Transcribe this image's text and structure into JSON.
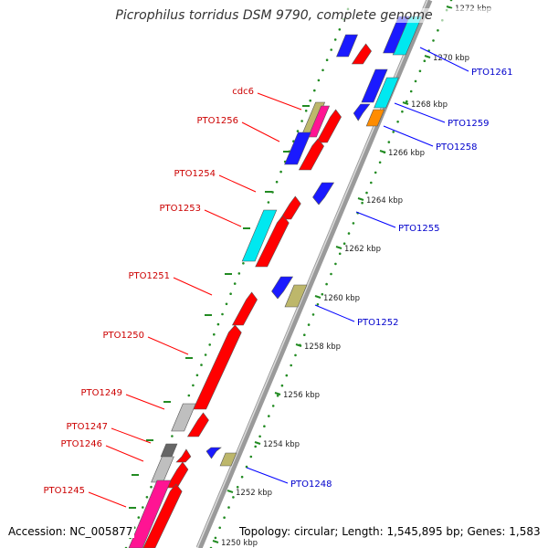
{
  "title": "Picrophilus torridus DSM 9790, complete genome",
  "footer": {
    "accession": "Accession: NC_005877",
    "topology": "Topology: circular; Length: 1,545,895 bp; Genes: 1,583"
  },
  "scale_ticks": [
    "1250 kbp",
    "1252 kbp",
    "1254 kbp",
    "1256 kbp",
    "1258 kbp",
    "1260 kbp",
    "1262 kbp",
    "1264 kbp",
    "1266 kbp",
    "1268 kbp",
    "1270 kbp",
    "1272 kbp"
  ],
  "left_labels": [
    "cdc6",
    "PTO1256",
    "PTO1254",
    "PTO1253",
    "PTO1251",
    "PTO1250",
    "PTO1249",
    "PTO1247",
    "PTO1246",
    "PTO1245"
  ],
  "right_labels": [
    "PTO1261",
    "PTO1259",
    "PTO1258",
    "PTO1255",
    "PTO1252",
    "PTO1248"
  ],
  "colors": {
    "red": "#ff0000",
    "blue": "#1a1aff",
    "cyan": "#00e8f0",
    "khaki": "#bdb76b",
    "gray": "#bfbfbf",
    "darkgray": "#666666",
    "pink": "#ff1493",
    "orange": "#ff8c00",
    "label_left": "#cc0000",
    "label_right": "#0000cc",
    "backbone": "#9a9a9a",
    "dots": "#228b22"
  }
}
